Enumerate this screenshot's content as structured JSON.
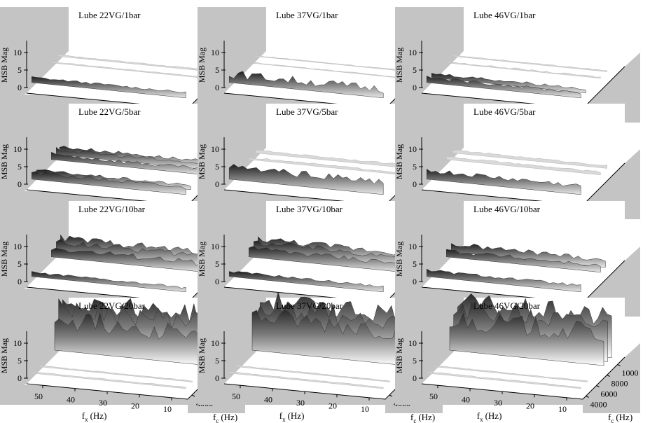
{
  "figure": {
    "ylabel": "MSB Mag",
    "xlabel_base": "f",
    "xlabel_sub": "x",
    "xlabel_unit": "(Hz)",
    "zlabel_base": "f",
    "zlabel_sub": "c",
    "zlabel_unit": "(Hz)"
  },
  "chart_data": {
    "type": "3d-waterfall-grid",
    "z_axis": {
      "label": "MSB Mag",
      "ticks": [
        0,
        5,
        10
      ],
      "range": [
        0,
        15
      ]
    },
    "x_axis": {
      "label": "f_x (Hz)",
      "ticks": [
        50,
        40,
        30,
        20,
        10
      ],
      "range": [
        55,
        5
      ]
    },
    "y_axis": {
      "label": "f_c (Hz)",
      "ticks_col1_col2": [
        "4000",
        "6000",
        "800"
      ],
      "ticks_col3": [
        "4000",
        "6000",
        "8000",
        "1000"
      ]
    },
    "panels": [
      {
        "title": "Lube 22VG/1bar",
        "bands": [
          {
            "frac": 0.0,
            "level": 1.5,
            "var": 0.3
          },
          {
            "frac": 0.6,
            "level": 0.3,
            "var": 0.1
          },
          {
            "frac": 0.8,
            "level": 0.4,
            "var": 0.1
          }
        ]
      },
      {
        "title": "Lube 37VG/1bar",
        "bands": [
          {
            "frac": 0.0,
            "level": 2.5,
            "var": 1.2
          },
          {
            "frac": 0.6,
            "level": 0.2,
            "var": 0.1
          },
          {
            "frac": 0.8,
            "level": 0.2,
            "var": 0.1
          }
        ]
      },
      {
        "title": "Lube 46VG/1bar",
        "bands": [
          {
            "frac": 0.0,
            "level": 1.5,
            "var": 0.4
          },
          {
            "frac": 0.15,
            "level": 1.2,
            "var": 0.4
          },
          {
            "frac": 0.6,
            "level": 0.3,
            "var": 0.2
          },
          {
            "frac": 0.8,
            "level": 0.3,
            "var": 0.1
          }
        ]
      },
      {
        "title": "Lube 22VG/5bar",
        "bands": [
          {
            "frac": 0.0,
            "level": 2.0,
            "var": 0.6
          },
          {
            "frac": 0.15,
            "level": 1.2,
            "var": 0.4
          },
          {
            "frac": 0.6,
            "level": 1.5,
            "var": 0.6
          },
          {
            "frac": 0.75,
            "level": 1.5,
            "var": 0.6
          },
          {
            "frac": 0.85,
            "level": 1.3,
            "var": 0.5
          }
        ]
      },
      {
        "title": "Lube 37VG/5bar",
        "bands": [
          {
            "frac": 0.0,
            "level": 3.5,
            "var": 1.0
          },
          {
            "frac": 0.6,
            "level": 0.6,
            "var": 0.2
          },
          {
            "frac": 0.8,
            "level": 0.8,
            "var": 0.2
          }
        ]
      },
      {
        "title": "Lube 46VG/5bar",
        "bands": [
          {
            "frac": 0.0,
            "level": 2.5,
            "var": 0.7
          },
          {
            "frac": 0.6,
            "level": 0.8,
            "var": 0.2
          },
          {
            "frac": 0.8,
            "level": 0.8,
            "var": 0.2
          }
        ]
      },
      {
        "title": "Lube 22VG/10bar",
        "bands": [
          {
            "frac": 0.0,
            "level": 1.2,
            "var": 0.3
          },
          {
            "frac": 0.6,
            "level": 2.5,
            "var": 0.8
          },
          {
            "frac": 0.75,
            "level": 3.0,
            "var": 1.0
          },
          {
            "frac": 0.88,
            "level": 2.8,
            "var": 1.0
          }
        ]
      },
      {
        "title": "Lube 37VG/10bar",
        "bands": [
          {
            "frac": 0.0,
            "level": 1.5,
            "var": 0.3
          },
          {
            "frac": 0.6,
            "level": 2.5,
            "var": 0.8
          },
          {
            "frac": 0.75,
            "level": 2.8,
            "var": 0.9
          },
          {
            "frac": 0.88,
            "level": 2.6,
            "var": 0.9
          }
        ]
      },
      {
        "title": "Lube 46VG/10bar",
        "bands": [
          {
            "frac": 0.0,
            "level": 1.8,
            "var": 0.4
          },
          {
            "frac": 0.6,
            "level": 1.8,
            "var": 0.6
          },
          {
            "frac": 0.75,
            "level": 2.2,
            "var": 0.7
          }
        ]
      },
      {
        "title": "Lube 22VG/20bar",
        "bands": [
          {
            "frac": 0.0,
            "level": 0.4,
            "var": 0.1
          },
          {
            "frac": 0.2,
            "level": 0.3,
            "var": 0.1
          },
          {
            "frac": 0.7,
            "level": 9.0,
            "var": 3.0
          },
          {
            "frac": 0.82,
            "level": 11.0,
            "var": 3.0
          },
          {
            "frac": 0.94,
            "level": 12.0,
            "var": 3.0
          }
        ]
      },
      {
        "title": "Lube 37VG/20bar",
        "bands": [
          {
            "frac": 0.0,
            "level": 0.4,
            "var": 0.1
          },
          {
            "frac": 0.2,
            "level": 0.3,
            "var": 0.1
          },
          {
            "frac": 0.7,
            "level": 9.5,
            "var": 3.0
          },
          {
            "frac": 0.82,
            "level": 11.5,
            "var": 3.0
          },
          {
            "frac": 0.94,
            "level": 12.0,
            "var": 3.0
          }
        ]
      },
      {
        "title": "Lube 46VG/20bar",
        "bands": [
          {
            "frac": 0.0,
            "level": 0.4,
            "var": 0.1
          },
          {
            "frac": 0.2,
            "level": 0.3,
            "var": 0.1
          },
          {
            "frac": 0.7,
            "level": 9.0,
            "var": 3.0
          },
          {
            "frac": 0.82,
            "level": 10.5,
            "var": 3.0
          },
          {
            "frac": 0.94,
            "level": 11.5,
            "var": 3.0
          }
        ]
      }
    ]
  }
}
